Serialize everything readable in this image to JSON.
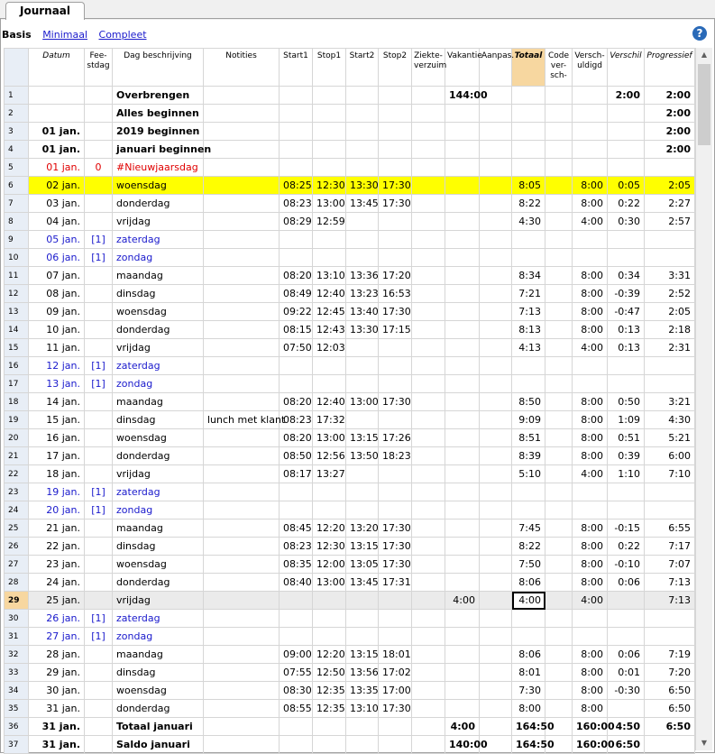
{
  "tabs": [
    {
      "label": "Journaal"
    }
  ],
  "views": {
    "basis": "Basis",
    "minimaal": "Minimaal",
    "compleet": "Compleet"
  },
  "help_label": "?",
  "columns": [
    "",
    "Datum",
    "Fee-stdag",
    "Dag beschrijving",
    "Notities",
    "Start1",
    "Stop1",
    "Start2",
    "Stop2",
    "Ziekte-verzuim",
    "Vakantie",
    "Aanpas.",
    "Totaal",
    "Code ver-sch-",
    "Versch-uldigd",
    "Verschil",
    "Progressief"
  ],
  "rows": [
    {
      "n": "1",
      "type": "bold",
      "cells": [
        "",
        "",
        "Overbrengen",
        "",
        "",
        "",
        "",
        "",
        "",
        "144:00",
        "",
        "",
        "",
        "",
        "2:00",
        "2:00"
      ]
    },
    {
      "n": "2",
      "type": "bold",
      "cells": [
        "",
        "",
        "Alles beginnen",
        "",
        "",
        "",
        "",
        "",
        "",
        "",
        "",
        "",
        "",
        "",
        "",
        "2:00"
      ]
    },
    {
      "n": "3",
      "type": "bold",
      "cells": [
        "01 jan.",
        "",
        "2019  beginnen",
        "",
        "",
        "",
        "",
        "",
        "",
        "",
        "",
        "",
        "",
        "",
        "",
        "2:00"
      ]
    },
    {
      "n": "4",
      "type": "bold",
      "cells": [
        "01 jan.",
        "",
        "januari  beginnen",
        "",
        "",
        "",
        "",
        "",
        "",
        "",
        "",
        "",
        "",
        "",
        "",
        "2:00"
      ]
    },
    {
      "n": "5",
      "type": "holiday",
      "cells": [
        "01 jan.",
        "0",
        "#Nieuwjaarsdag",
        "",
        "",
        "",
        "",
        "",
        "",
        "",
        "",
        "",
        "",
        "",
        "",
        ""
      ]
    },
    {
      "n": "6",
      "type": "hl",
      "cells": [
        "02 jan.",
        "",
        "woensdag",
        "",
        "08:25",
        "12:30",
        "13:30",
        "17:30",
        "",
        "",
        "",
        "8:05",
        "",
        "8:00",
        "0:05",
        "2:05"
      ]
    },
    {
      "n": "7",
      "type": "",
      "cells": [
        "03 jan.",
        "",
        "donderdag",
        "",
        "08:23",
        "13:00",
        "13:45",
        "17:30",
        "",
        "",
        "",
        "8:22",
        "",
        "8:00",
        "0:22",
        "2:27"
      ]
    },
    {
      "n": "8",
      "type": "",
      "cells": [
        "04 jan.",
        "",
        "vrijdag",
        "",
        "08:29",
        "12:59",
        "",
        "",
        "",
        "",
        "",
        "4:30",
        "",
        "4:00",
        "0:30",
        "2:57"
      ]
    },
    {
      "n": "9",
      "type": "weekend",
      "cells": [
        "05 jan.",
        "[1]",
        "zaterdag",
        "",
        "",
        "",
        "",
        "",
        "",
        "",
        "",
        "",
        "",
        "",
        "",
        ""
      ]
    },
    {
      "n": "10",
      "type": "weekend",
      "cells": [
        "06 jan.",
        "[1]",
        "zondag",
        "",
        "",
        "",
        "",
        "",
        "",
        "",
        "",
        "",
        "",
        "",
        "",
        ""
      ]
    },
    {
      "n": "11",
      "type": "",
      "cells": [
        "07 jan.",
        "",
        "maandag",
        "",
        "08:20",
        "13:10",
        "13:36",
        "17:20",
        "",
        "",
        "",
        "8:34",
        "",
        "8:00",
        "0:34",
        "3:31"
      ]
    },
    {
      "n": "12",
      "type": "",
      "cells": [
        "08 jan.",
        "",
        "dinsdag",
        "",
        "08:49",
        "12:40",
        "13:23",
        "16:53",
        "",
        "",
        "",
        "7:21",
        "",
        "8:00",
        "-0:39",
        "2:52"
      ]
    },
    {
      "n": "13",
      "type": "",
      "cells": [
        "09 jan.",
        "",
        "woensdag",
        "",
        "09:22",
        "12:45",
        "13:40",
        "17:30",
        "",
        "",
        "",
        "7:13",
        "",
        "8:00",
        "-0:47",
        "2:05"
      ]
    },
    {
      "n": "14",
      "type": "",
      "cells": [
        "10 jan.",
        "",
        "donderdag",
        "",
        "08:15",
        "12:43",
        "13:30",
        "17:15",
        "",
        "",
        "",
        "8:13",
        "",
        "8:00",
        "0:13",
        "2:18"
      ]
    },
    {
      "n": "15",
      "type": "",
      "cells": [
        "11 jan.",
        "",
        "vrijdag",
        "",
        "07:50",
        "12:03",
        "",
        "",
        "",
        "",
        "",
        "4:13",
        "",
        "4:00",
        "0:13",
        "2:31"
      ]
    },
    {
      "n": "16",
      "type": "weekend",
      "cells": [
        "12 jan.",
        "[1]",
        "zaterdag",
        "",
        "",
        "",
        "",
        "",
        "",
        "",
        "",
        "",
        "",
        "",
        "",
        ""
      ]
    },
    {
      "n": "17",
      "type": "weekend",
      "cells": [
        "13 jan.",
        "[1]",
        "zondag",
        "",
        "",
        "",
        "",
        "",
        "",
        "",
        "",
        "",
        "",
        "",
        "",
        ""
      ]
    },
    {
      "n": "18",
      "type": "",
      "cells": [
        "14 jan.",
        "",
        "maandag",
        "",
        "08:20",
        "12:40",
        "13:00",
        "17:30",
        "",
        "",
        "",
        "8:50",
        "",
        "8:00",
        "0:50",
        "3:21"
      ]
    },
    {
      "n": "19",
      "type": "",
      "cells": [
        "15 jan.",
        "",
        "dinsdag",
        "lunch met klant",
        "08:23",
        "17:32",
        "",
        "",
        "",
        "",
        "",
        "9:09",
        "",
        "8:00",
        "1:09",
        "4:30"
      ]
    },
    {
      "n": "20",
      "type": "",
      "cells": [
        "16 jan.",
        "",
        "woensdag",
        "",
        "08:20",
        "13:00",
        "13:15",
        "17:26",
        "",
        "",
        "",
        "8:51",
        "",
        "8:00",
        "0:51",
        "5:21"
      ]
    },
    {
      "n": "21",
      "type": "",
      "cells": [
        "17 jan.",
        "",
        "donderdag",
        "",
        "08:50",
        "12:56",
        "13:50",
        "18:23",
        "",
        "",
        "",
        "8:39",
        "",
        "8:00",
        "0:39",
        "6:00"
      ]
    },
    {
      "n": "22",
      "type": "",
      "cells": [
        "18 jan.",
        "",
        "vrijdag",
        "",
        "08:17",
        "13:27",
        "",
        "",
        "",
        "",
        "",
        "5:10",
        "",
        "4:00",
        "1:10",
        "7:10"
      ]
    },
    {
      "n": "23",
      "type": "weekend",
      "cells": [
        "19 jan.",
        "[1]",
        "zaterdag",
        "",
        "",
        "",
        "",
        "",
        "",
        "",
        "",
        "",
        "",
        "",
        "",
        ""
      ]
    },
    {
      "n": "24",
      "type": "weekend",
      "cells": [
        "20 jan.",
        "[1]",
        "zondag",
        "",
        "",
        "",
        "",
        "",
        "",
        "",
        "",
        "",
        "",
        "",
        "",
        ""
      ]
    },
    {
      "n": "25",
      "type": "",
      "cells": [
        "21 jan.",
        "",
        "maandag",
        "",
        "08:45",
        "12:20",
        "13:20",
        "17:30",
        "",
        "",
        "",
        "7:45",
        "",
        "8:00",
        "-0:15",
        "6:55"
      ]
    },
    {
      "n": "26",
      "type": "",
      "cells": [
        "22 jan.",
        "",
        "dinsdag",
        "",
        "08:23",
        "12:30",
        "13:15",
        "17:30",
        "",
        "",
        "",
        "8:22",
        "",
        "8:00",
        "0:22",
        "7:17"
      ]
    },
    {
      "n": "27",
      "type": "",
      "cells": [
        "23 jan.",
        "",
        "woensdag",
        "",
        "08:35",
        "12:00",
        "13:05",
        "17:30",
        "",
        "",
        "",
        "7:50",
        "",
        "8:00",
        "-0:10",
        "7:07"
      ]
    },
    {
      "n": "28",
      "type": "",
      "cells": [
        "24 jan.",
        "",
        "donderdag",
        "",
        "08:40",
        "13:00",
        "13:45",
        "17:31",
        "",
        "",
        "",
        "8:06",
        "",
        "8:00",
        "0:06",
        "7:13"
      ]
    },
    {
      "n": "29",
      "type": "sel",
      "cells": [
        "25 jan.",
        "",
        "vrijdag",
        "",
        "",
        "",
        "",
        "",
        "",
        "4:00",
        "",
        "4:00",
        "",
        "4:00",
        "",
        "7:13"
      ]
    },
    {
      "n": "30",
      "type": "weekend",
      "cells": [
        "26 jan.",
        "[1]",
        "zaterdag",
        "",
        "",
        "",
        "",
        "",
        "",
        "",
        "",
        "",
        "",
        "",
        "",
        ""
      ]
    },
    {
      "n": "31",
      "type": "weekend",
      "cells": [
        "27 jan.",
        "[1]",
        "zondag",
        "",
        "",
        "",
        "",
        "",
        "",
        "",
        "",
        "",
        "",
        "",
        "",
        ""
      ]
    },
    {
      "n": "32",
      "type": "",
      "cells": [
        "28 jan.",
        "",
        "maandag",
        "",
        "09:00",
        "12:20",
        "13:15",
        "18:01",
        "",
        "",
        "",
        "8:06",
        "",
        "8:00",
        "0:06",
        "7:19"
      ]
    },
    {
      "n": "33",
      "type": "",
      "cells": [
        "29 jan.",
        "",
        "dinsdag",
        "",
        "07:55",
        "12:50",
        "13:56",
        "17:02",
        "",
        "",
        "",
        "8:01",
        "",
        "8:00",
        "0:01",
        "7:20"
      ]
    },
    {
      "n": "34",
      "type": "",
      "cells": [
        "30 jan.",
        "",
        "woensdag",
        "",
        "08:30",
        "12:35",
        "13:35",
        "17:00",
        "",
        "",
        "",
        "7:30",
        "",
        "8:00",
        "-0:30",
        "6:50"
      ]
    },
    {
      "n": "35",
      "type": "",
      "cells": [
        "31 jan.",
        "",
        "donderdag",
        "",
        "08:55",
        "12:35",
        "13:10",
        "17:30",
        "",
        "",
        "",
        "8:00",
        "",
        "8:00",
        "",
        "6:50"
      ]
    },
    {
      "n": "36",
      "type": "bold",
      "cells": [
        "31 jan.",
        "",
        "Totaal januari",
        "",
        "",
        "",
        "",
        "",
        "",
        "4:00",
        "",
        "164:50",
        "",
        "160:00",
        "4:50",
        "6:50"
      ]
    },
    {
      "n": "37",
      "type": "bold",
      "cells": [
        "31 jan.",
        "",
        "Saldo januari",
        "",
        "",
        "",
        "",
        "",
        "",
        "140:00",
        "",
        "164:50",
        "",
        "160:00",
        "6:50",
        ""
      ]
    }
  ]
}
